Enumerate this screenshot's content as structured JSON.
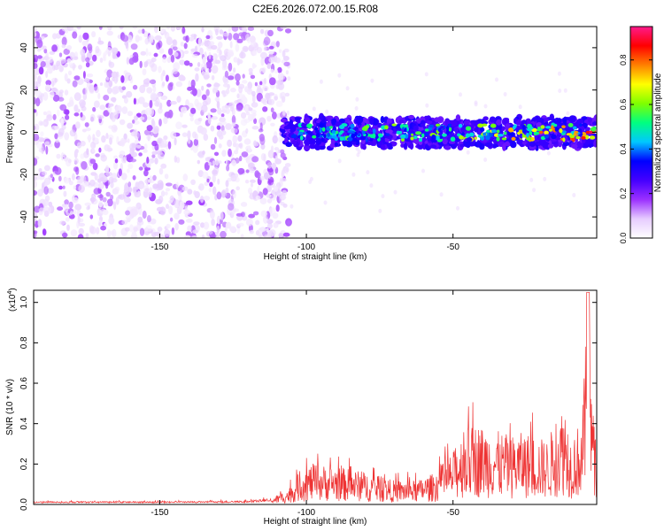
{
  "title": "C2E6.2026.072.00.15.R08",
  "chart_data": [
    {
      "type": "heatmap",
      "title": "",
      "xlabel": "Height of straight line (km)",
      "ylabel": "Frequency (Hz)",
      "xlim": [
        -193,
        -1
      ],
      "ylim": [
        -50,
        50
      ],
      "x_ticks": [
        -150,
        -100,
        -50
      ],
      "x_tick_labels": [
        "-150",
        "-100",
        "-50"
      ],
      "y_ticks": [
        -40,
        -20,
        0,
        20,
        40
      ],
      "y_tick_labels": [
        "-40",
        "-20",
        "0",
        "20",
        "40"
      ],
      "colorbar": {
        "label": "Normalized spectral amplitude",
        "range": [
          0.0,
          0.95
        ],
        "ticks": [
          0.0,
          0.2,
          0.4,
          0.6,
          0.8
        ],
        "tick_labels": [
          "0.0",
          "0.2",
          "0.4",
          "0.6",
          "0.8"
        ],
        "colormap": [
          "#ffffff",
          "#e6ccff",
          "#9b30ff",
          "#4400ff",
          "#0000ff",
          "#00c8ff",
          "#00ff80",
          "#80ff00",
          "#ffff00",
          "#ff8000",
          "#ff0000",
          "#ff1a8c"
        ]
      },
      "regions": [
        {
          "name": "broadband noise",
          "x_range": [
            -193,
            -108
          ],
          "freq_range": [
            -50,
            50
          ],
          "amplitude": 0.05
        },
        {
          "name": "signal band",
          "x_range": [
            -108,
            -1
          ],
          "center_freq": 0,
          "half_width_hz": 6,
          "amplitude_start": 0.3,
          "amplitude_end": 0.9
        }
      ]
    },
    {
      "type": "line",
      "title": "",
      "xlabel": "Height of straight line (km)",
      "ylabel": "SNR (10 * v/v)",
      "y_multiplier_label": "(x10",
      "y_multiplier_exp": "4",
      "y_multiplier_close": ")",
      "xlim": [
        -193,
        -1
      ],
      "ylim": [
        0,
        1.06
      ],
      "x_ticks": [
        -150,
        -100,
        -50
      ],
      "x_tick_labels": [
        "-150",
        "-100",
        "-50"
      ],
      "y_ticks": [
        0.0,
        0.2,
        0.4,
        0.6,
        0.8,
        1.0
      ],
      "y_tick_labels": [
        "0.0",
        "0.2",
        "0.4",
        "0.6",
        "0.8",
        "1.0"
      ],
      "series": [
        {
          "name": "SNR",
          "color": "#ee3333",
          "envelope_x": [
            -193,
            -150,
            -120,
            -112,
            -106,
            -102,
            -98,
            -90,
            -80,
            -70,
            -62,
            -56,
            -50,
            -46,
            -42,
            -38,
            -34,
            -30,
            -26,
            -22,
            -18,
            -14,
            -12,
            -10,
            -6,
            -4,
            -2,
            -1
          ],
          "envelope_y": [
            0.015,
            0.015,
            0.017,
            0.03,
            0.08,
            0.17,
            0.2,
            0.19,
            0.16,
            0.12,
            0.12,
            0.16,
            0.26,
            0.38,
            0.4,
            0.38,
            0.36,
            0.34,
            0.36,
            0.34,
            0.32,
            0.44,
            0.52,
            0.34,
            0.42,
            1.05,
            0.4,
            0.28
          ]
        }
      ]
    }
  ]
}
